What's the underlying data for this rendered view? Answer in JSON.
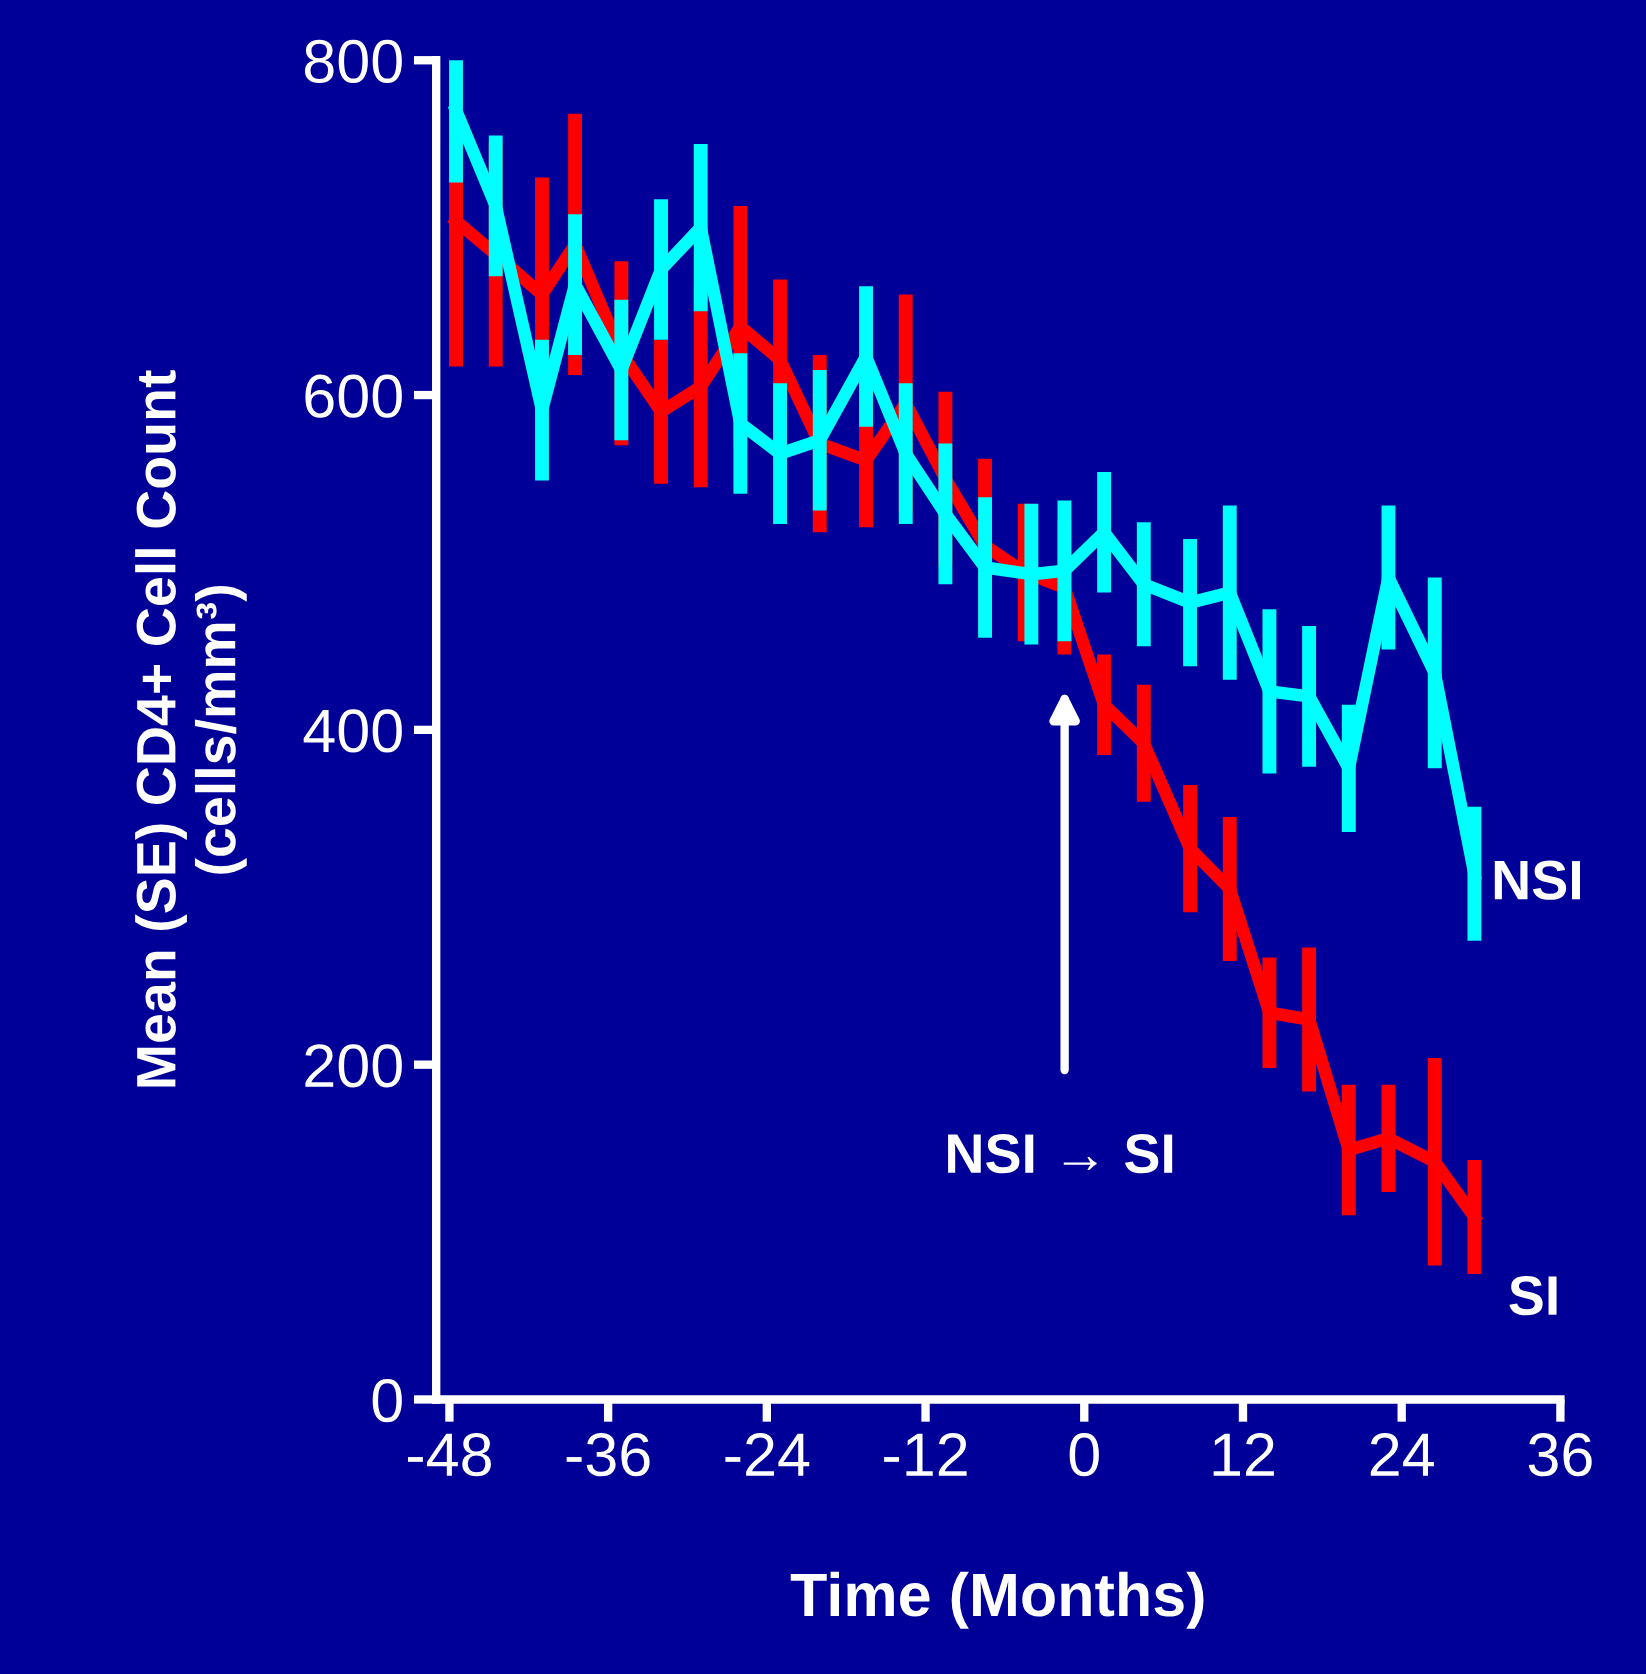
{
  "chart_data": {
    "type": "line",
    "xlabel": "Time (Months)",
    "ylabel": "Mean (SE) CD4+ Cell Count\n(cells/mm³)",
    "xlim": [
      -49,
      36
    ],
    "xticks": [
      -48,
      -36,
      -24,
      -12,
      0,
      12,
      24,
      36
    ],
    "ylim": [
      0,
      800
    ],
    "yticks": [
      0,
      200,
      400,
      600,
      800
    ],
    "grid": false,
    "marker": "none",
    "line_style": "solid",
    "series": [
      {
        "name": "SI",
        "color": "#ff0000",
        "x": [
          -47.5,
          -44.5,
          -41,
          -38.5,
          -35,
          -32,
          -29,
          -26,
          -23,
          -20,
          -16.5,
          -13.5,
          -10.5,
          -7.5,
          -4.5,
          -1.5,
          1.5,
          4.5,
          8,
          11,
          14,
          17,
          20,
          23,
          26.5,
          29.5
        ],
        "values": [
          704,
          684,
          660,
          690,
          625,
          590,
          605,
          641,
          621,
          571,
          561,
          595,
          550,
          510,
          494,
          485,
          415,
          392,
          329,
          305,
          231,
          227,
          149,
          156,
          142,
          109
        ],
        "errors": [
          87,
          67,
          70,
          78,
          55,
          43,
          60,
          72,
          48,
          53,
          40,
          65,
          52,
          52,
          41,
          40,
          30,
          35,
          38,
          43,
          33,
          43,
          39,
          32,
          62,
          34
        ]
      },
      {
        "name": "NSI",
        "color": "#00ffff",
        "x": [
          -47.5,
          -44.5,
          -41,
          -38.5,
          -35,
          -32,
          -29,
          -26,
          -23,
          -20,
          -16.5,
          -13.5,
          -10.5,
          -7.5,
          -4,
          -1.5,
          1.5,
          4.5,
          8,
          11,
          14,
          17,
          20,
          23,
          26.5,
          29.5
        ],
        "values": [
          770,
          713,
          591,
          666,
          615,
          675,
          700,
          583,
          565,
          573,
          623,
          565,
          529,
          497,
          493,
          495,
          518,
          487,
          476,
          482,
          423,
          420,
          377,
          491,
          434,
          314
        ],
        "errors": [
          43,
          42,
          42,
          42,
          42,
          42,
          50,
          42,
          42,
          42,
          42,
          42,
          42,
          42,
          42,
          42,
          36,
          37,
          38,
          52,
          49,
          42,
          38,
          43,
          57,
          40
        ]
      }
    ],
    "annotations": [
      "NSI → SI"
    ]
  }
}
